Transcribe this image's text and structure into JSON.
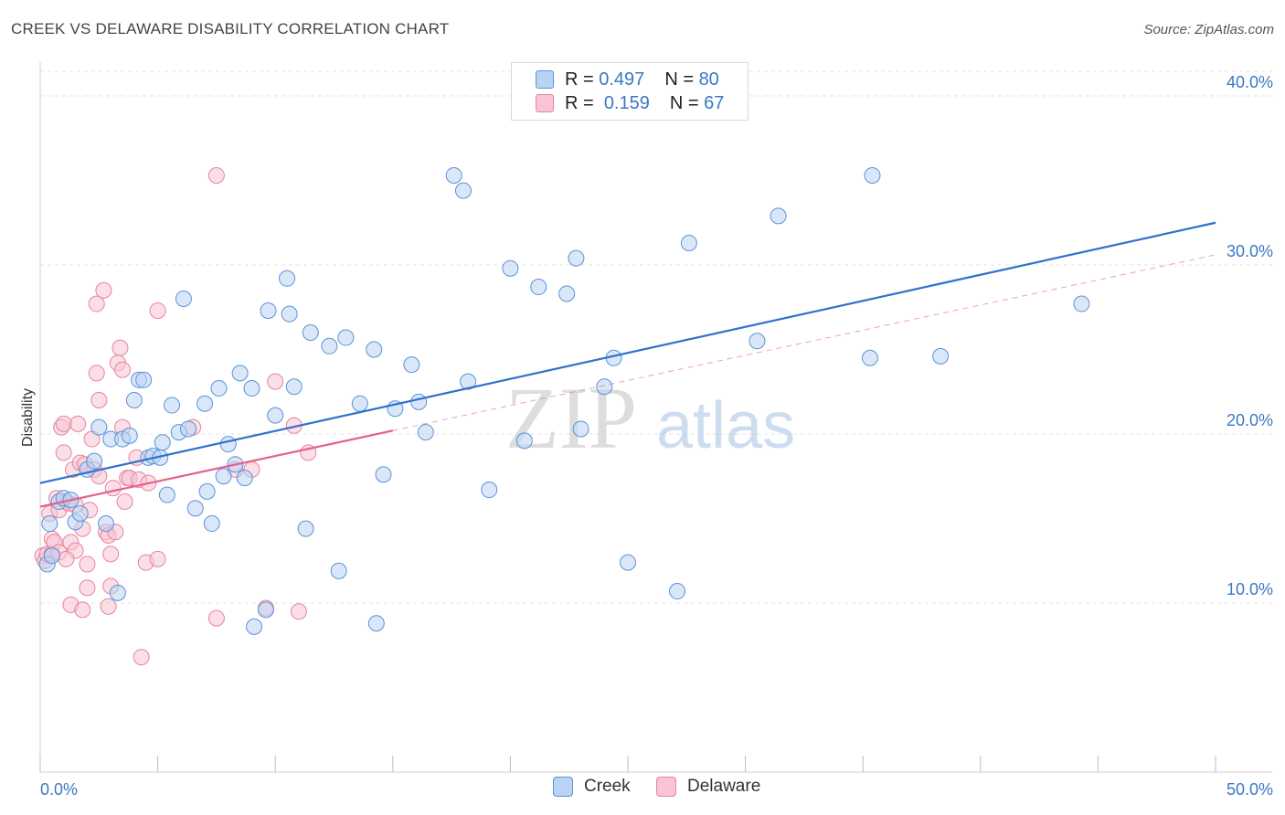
{
  "title": "CREEK VS DELAWARE DISABILITY CORRELATION CHART",
  "source": "Source: ZipAtlas.com",
  "watermark": {
    "zip": "ZIP",
    "atlas": "atlas"
  },
  "legend": {
    "rows": [
      {
        "r_label": "R =",
        "r_value": "0.497",
        "n_label": "N =",
        "n_value": "80"
      },
      {
        "r_label": "R =",
        "r_value": "0.159",
        "n_label": "N =",
        "n_value": "67"
      }
    ]
  },
  "bottom_legend": {
    "creek": "Creek",
    "delaware": "Delaware"
  },
  "colors": {
    "creek_fill": "#b9d3f4",
    "creek_stroke": "#5b93d8",
    "creek_line": "#2f72cc",
    "delaware_fill": "#f8c5d4",
    "delaware_stroke": "#e7839f",
    "delaware_line": "#e0628c",
    "tick_text": "#3b78c4",
    "grid": "#e3e3e3"
  },
  "chart_data": {
    "type": "scatter",
    "title": "CREEK VS DELAWARE DISABILITY CORRELATION CHART",
    "xlabel": "",
    "ylabel": "Disability",
    "xlim": [
      0,
      50
    ],
    "ylim": [
      0,
      42
    ],
    "x_tick_labels": [
      {
        "value": 0,
        "label": "0.0%"
      },
      {
        "value": 50,
        "label": "50.0%"
      }
    ],
    "y_ticks": [
      {
        "value": 10,
        "label": "10.0%"
      },
      {
        "value": 20,
        "label": "20.0%"
      },
      {
        "value": 30,
        "label": "30.0%"
      },
      {
        "value": 40,
        "label": "40.0%"
      }
    ],
    "series": [
      {
        "name": "Creek",
        "R": 0.497,
        "N": 80,
        "trend": {
          "x": [
            0,
            50
          ],
          "y": [
            17.1,
            32.5
          ],
          "style": "solid"
        },
        "points": [
          [
            0.3,
            12.3
          ],
          [
            0.4,
            14.7
          ],
          [
            0.5,
            12.8
          ],
          [
            0.8,
            16.0
          ],
          [
            1.0,
            16.2
          ],
          [
            1.3,
            16.1
          ],
          [
            1.5,
            14.8
          ],
          [
            1.7,
            15.3
          ],
          [
            2.0,
            17.9
          ],
          [
            2.3,
            18.4
          ],
          [
            2.5,
            20.4
          ],
          [
            2.8,
            14.7
          ],
          [
            3.0,
            19.7
          ],
          [
            3.3,
            10.6
          ],
          [
            3.5,
            19.7
          ],
          [
            3.8,
            19.9
          ],
          [
            4.0,
            22.0
          ],
          [
            4.2,
            23.2
          ],
          [
            4.4,
            23.2
          ],
          [
            4.6,
            18.6
          ],
          [
            4.8,
            18.7
          ],
          [
            5.1,
            18.6
          ],
          [
            5.2,
            19.5
          ],
          [
            5.4,
            16.4
          ],
          [
            5.6,
            21.7
          ],
          [
            5.9,
            20.1
          ],
          [
            6.1,
            28.0
          ],
          [
            6.3,
            20.3
          ],
          [
            6.6,
            15.6
          ],
          [
            7.0,
            21.8
          ],
          [
            7.1,
            16.6
          ],
          [
            7.3,
            14.7
          ],
          [
            7.6,
            22.7
          ],
          [
            7.8,
            17.5
          ],
          [
            8.0,
            19.4
          ],
          [
            8.3,
            18.2
          ],
          [
            8.5,
            23.6
          ],
          [
            8.7,
            17.4
          ],
          [
            9.0,
            22.7
          ],
          [
            9.1,
            8.6
          ],
          [
            9.6,
            9.6
          ],
          [
            9.7,
            27.3
          ],
          [
            10.0,
            21.1
          ],
          [
            10.5,
            29.2
          ],
          [
            10.6,
            27.1
          ],
          [
            10.8,
            22.8
          ],
          [
            11.3,
            14.4
          ],
          [
            11.5,
            26.0
          ],
          [
            12.3,
            25.2
          ],
          [
            12.7,
            11.9
          ],
          [
            13.0,
            25.7
          ],
          [
            13.6,
            21.8
          ],
          [
            14.2,
            25.0
          ],
          [
            14.3,
            8.8
          ],
          [
            14.6,
            17.6
          ],
          [
            15.1,
            21.5
          ],
          [
            15.8,
            24.1
          ],
          [
            16.1,
            21.9
          ],
          [
            16.4,
            20.1
          ],
          [
            17.6,
            35.3
          ],
          [
            18.0,
            34.4
          ],
          [
            18.2,
            23.1
          ],
          [
            19.1,
            16.7
          ],
          [
            20.0,
            29.8
          ],
          [
            20.6,
            19.6
          ],
          [
            21.2,
            28.7
          ],
          [
            22.4,
            28.3
          ],
          [
            22.8,
            30.4
          ],
          [
            23.0,
            20.3
          ],
          [
            24.0,
            22.8
          ],
          [
            24.4,
            24.5
          ],
          [
            25.0,
            12.4
          ],
          [
            27.1,
            10.7
          ],
          [
            27.6,
            31.3
          ],
          [
            30.5,
            25.5
          ],
          [
            31.4,
            32.9
          ],
          [
            35.4,
            35.3
          ],
          [
            35.3,
            24.5
          ],
          [
            38.3,
            24.6
          ],
          [
            44.3,
            27.7
          ]
        ]
      },
      {
        "name": "Delaware",
        "R": 0.159,
        "N": 67,
        "trend": {
          "x": [
            0,
            15
          ],
          "y": [
            15.7,
            20.2
          ],
          "style": "solid"
        },
        "trend_extension": {
          "x": [
            15,
            50
          ],
          "y": [
            20.2,
            30.6
          ],
          "style": "dashed"
        },
        "points": [
          [
            0.1,
            12.8
          ],
          [
            0.2,
            12.5
          ],
          [
            0.3,
            12.9
          ],
          [
            0.4,
            15.3
          ],
          [
            0.5,
            13.8
          ],
          [
            0.5,
            12.9
          ],
          [
            0.6,
            13.6
          ],
          [
            0.7,
            16.2
          ],
          [
            0.8,
            15.5
          ],
          [
            0.8,
            13.0
          ],
          [
            0.9,
            20.4
          ],
          [
            1.0,
            20.6
          ],
          [
            1.0,
            18.9
          ],
          [
            1.1,
            16.0
          ],
          [
            1.2,
            15.9
          ],
          [
            1.3,
            9.9
          ],
          [
            1.3,
            13.6
          ],
          [
            1.4,
            17.9
          ],
          [
            1.5,
            13.1
          ],
          [
            1.5,
            15.8
          ],
          [
            1.6,
            20.6
          ],
          [
            1.7,
            18.3
          ],
          [
            1.8,
            14.4
          ],
          [
            1.8,
            9.6
          ],
          [
            1.9,
            18.2
          ],
          [
            2.0,
            12.3
          ],
          [
            2.0,
            10.9
          ],
          [
            2.1,
            15.5
          ],
          [
            2.2,
            19.7
          ],
          [
            2.3,
            17.9
          ],
          [
            2.4,
            23.6
          ],
          [
            2.4,
            27.7
          ],
          [
            2.5,
            22.0
          ],
          [
            2.5,
            17.5
          ],
          [
            2.7,
            28.5
          ],
          [
            2.8,
            14.2
          ],
          [
            2.9,
            14.0
          ],
          [
            2.9,
            9.8
          ],
          [
            3.0,
            12.9
          ],
          [
            3.0,
            11.0
          ],
          [
            3.1,
            16.8
          ],
          [
            3.2,
            14.2
          ],
          [
            3.3,
            24.2
          ],
          [
            3.4,
            25.1
          ],
          [
            3.5,
            20.4
          ],
          [
            3.5,
            23.8
          ],
          [
            3.6,
            16.0
          ],
          [
            3.7,
            17.4
          ],
          [
            3.8,
            17.4
          ],
          [
            4.1,
            18.6
          ],
          [
            4.2,
            17.3
          ],
          [
            4.3,
            6.8
          ],
          [
            4.5,
            12.4
          ],
          [
            4.6,
            17.1
          ],
          [
            5.0,
            12.6
          ],
          [
            5.0,
            27.3
          ],
          [
            6.5,
            20.4
          ],
          [
            7.5,
            9.1
          ],
          [
            7.5,
            35.3
          ],
          [
            8.3,
            17.9
          ],
          [
            9.0,
            17.9
          ],
          [
            9.6,
            9.7
          ],
          [
            10.0,
            23.1
          ],
          [
            10.8,
            20.5
          ],
          [
            11.0,
            9.5
          ],
          [
            11.4,
            18.9
          ],
          [
            1.1,
            12.6
          ]
        ]
      }
    ]
  }
}
